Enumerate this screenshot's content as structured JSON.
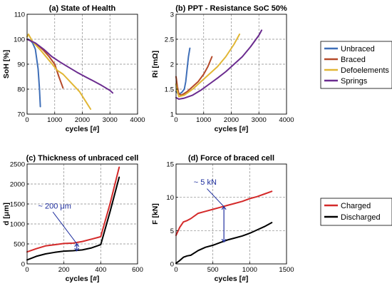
{
  "chart_data": [
    {
      "type": "line",
      "title": "(a) State of Health",
      "xlabel": "cycles [#]",
      "ylabel": "SoH [%]",
      "xlim": [
        0,
        4000
      ],
      "ylim": [
        70,
        110
      ],
      "xticks": [
        0,
        1000,
        2000,
        3000,
        4000
      ],
      "yticks": [
        70,
        80,
        90,
        100,
        110
      ],
      "grid": true,
      "series": [
        {
          "name": "Unbraced",
          "color": "#3f6fb8",
          "x": [
            0,
            100,
            200,
            300,
            400,
            450,
            480
          ],
          "y": [
            100,
            99.7,
            98.5,
            96,
            88,
            80,
            73
          ]
        },
        {
          "name": "Braced",
          "color": "#b54a2a",
          "x": [
            0,
            200,
            400,
            600,
            800,
            1000,
            1150,
            1300
          ],
          "y": [
            100,
            99,
            97.5,
            95.5,
            93,
            90,
            85,
            80.5
          ]
        },
        {
          "name": "Defoelements",
          "color": "#e1b634",
          "x": [
            0,
            50,
            200,
            500,
            800,
            1100,
            1300,
            1600,
            1900,
            2100,
            2300
          ],
          "y": [
            101,
            102,
            99,
            95.5,
            91.5,
            87.5,
            86,
            82.5,
            79,
            75.5,
            72
          ]
        },
        {
          "name": "Springs",
          "color": "#6b2c8f",
          "x": [
            0,
            300,
            600,
            900,
            1200,
            1500,
            1800,
            2100,
            2400,
            2700,
            3000,
            3100
          ],
          "y": [
            100,
            98.5,
            96,
            93,
            90.8,
            88.8,
            86.8,
            85,
            83.3,
            81.5,
            79.5,
            78.5
          ]
        }
      ]
    },
    {
      "type": "line",
      "title": "(b) PPT - Resistance SoC 50%",
      "xlabel": "cycles [#]",
      "ylabel": "Ri [mΩ]",
      "xlim": [
        0,
        4000
      ],
      "ylim": [
        1,
        3
      ],
      "xticks": [
        0,
        1000,
        2000,
        3000,
        4000
      ],
      "yticks": [
        1,
        1.5,
        2,
        2.5,
        3
      ],
      "grid": true,
      "series": [
        {
          "name": "Unbraced",
          "color": "#3f6fb8",
          "x": [
            0,
            100,
            200,
            300,
            350,
            400,
            450,
            500
          ],
          "y": [
            1.45,
            1.4,
            1.43,
            1.5,
            1.65,
            1.9,
            2.15,
            2.32
          ]
        },
        {
          "name": "Braced",
          "color": "#b54a2a",
          "x": [
            0,
            50,
            100,
            200,
            400,
            600,
            800,
            1000,
            1150,
            1300
          ],
          "y": [
            1.75,
            1.55,
            1.4,
            1.38,
            1.45,
            1.55,
            1.65,
            1.8,
            1.95,
            2.15
          ]
        },
        {
          "name": "Defoelements",
          "color": "#e1b634",
          "x": [
            0,
            50,
            100,
            300,
            600,
            900,
            1200,
            1500,
            1800,
            2100,
            2300
          ],
          "y": [
            1.6,
            1.45,
            1.35,
            1.38,
            1.5,
            1.65,
            1.8,
            1.95,
            2.15,
            2.4,
            2.6
          ]
        },
        {
          "name": "Springs",
          "color": "#6b2c8f",
          "x": [
            0,
            100,
            300,
            600,
            900,
            1200,
            1500,
            1800,
            2100,
            2400,
            2700,
            3000,
            3100
          ],
          "y": [
            1.33,
            1.3,
            1.32,
            1.38,
            1.48,
            1.6,
            1.72,
            1.85,
            2.0,
            2.15,
            2.35,
            2.58,
            2.68
          ]
        }
      ]
    },
    {
      "type": "line",
      "title": "(c) Thickness of unbraced cell",
      "xlabel": "cycles [#]",
      "ylabel": "d [μm]",
      "xlim": [
        0,
        600
      ],
      "ylim": [
        0,
        2500
      ],
      "xticks": [
        0,
        200,
        400,
        600
      ],
      "yticks": [
        0,
        500,
        1000,
        1500,
        2000,
        2500
      ],
      "grid": true,
      "annotation": "~ 200 μm",
      "series": [
        {
          "name": "Charged",
          "color": "#d42a2a",
          "x": [
            0,
            50,
            100,
            150,
            200,
            250,
            300,
            350,
            400,
            450,
            500
          ],
          "y": [
            300,
            380,
            450,
            480,
            510,
            520,
            560,
            620,
            680,
            1500,
            2420
          ]
        },
        {
          "name": "Discharged",
          "color": "#000000",
          "x": [
            0,
            50,
            100,
            150,
            200,
            250,
            300,
            350,
            400,
            450,
            500
          ],
          "y": [
            100,
            190,
            250,
            290,
            320,
            330,
            350,
            400,
            480,
            1300,
            2170
          ]
        }
      ]
    },
    {
      "type": "line",
      "title": "(d) Force of braced cell",
      "xlabel": "cycles [#]",
      "ylabel": "F [kN]",
      "xlim": [
        0,
        1500
      ],
      "ylim": [
        0,
        15
      ],
      "xticks": [
        0,
        500,
        1000,
        1500
      ],
      "yticks": [
        0,
        5,
        10,
        15
      ],
      "grid": true,
      "annotation": "~ 5 kN",
      "series": [
        {
          "name": "Charged",
          "color": "#d42a2a",
          "x": [
            0,
            50,
            100,
            150,
            200,
            300,
            400,
            500,
            600,
            700,
            800,
            900,
            1000,
            1100,
            1200,
            1300
          ],
          "y": [
            4.3,
            5.5,
            6.3,
            6.5,
            6.8,
            7.6,
            7.9,
            8.2,
            8.5,
            8.8,
            9.1,
            9.4,
            9.8,
            10.1,
            10.5,
            10.9
          ]
        },
        {
          "name": "Discharged",
          "color": "#000000",
          "x": [
            0,
            50,
            100,
            150,
            200,
            300,
            400,
            500,
            600,
            700,
            800,
            900,
            1000,
            1100,
            1200,
            1300
          ],
          "y": [
            0.1,
            0.5,
            1.0,
            1.2,
            1.3,
            2.0,
            2.5,
            2.8,
            3.2,
            3.6,
            3.9,
            4.2,
            4.6,
            5.1,
            5.6,
            6.2
          ]
        }
      ]
    }
  ],
  "legends": [
    {
      "entries": [
        {
          "label": "Unbraced",
          "color": "#3f6fb8"
        },
        {
          "label": "Braced",
          "color": "#b54a2a"
        },
        {
          "label": "Defoelements",
          "color": "#e1b634"
        },
        {
          "label": "Springs",
          "color": "#6b2c8f"
        }
      ]
    },
    {
      "entries": [
        {
          "label": "Charged",
          "color": "#d42a2a"
        },
        {
          "label": "Discharged",
          "color": "#000000"
        }
      ]
    }
  ]
}
